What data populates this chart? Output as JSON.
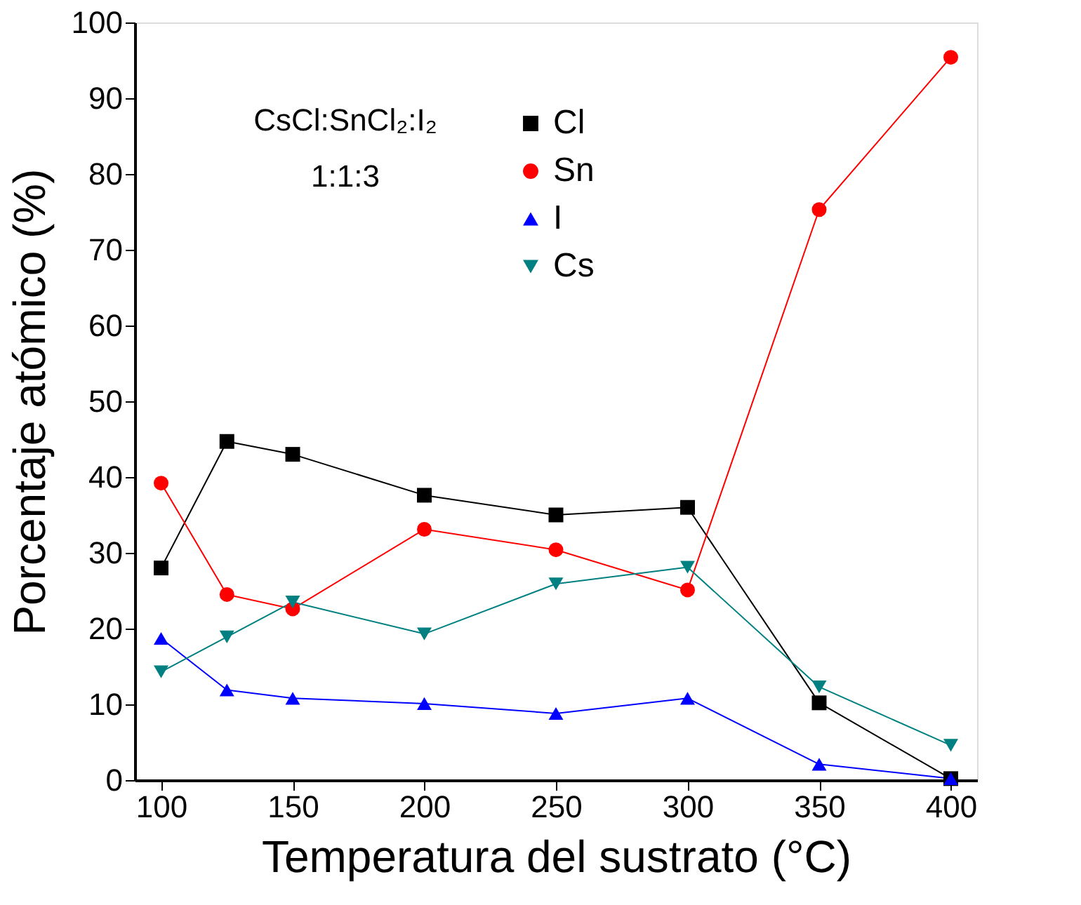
{
  "chart_data": {
    "type": "line",
    "xlabel": "Temperatura del sustrato  (°C)",
    "ylabel": "Porcentaje atómico  (%)",
    "x": [
      100,
      125,
      150,
      200,
      250,
      300,
      350,
      400
    ],
    "series": [
      {
        "name": "Cl",
        "color": "#000000",
        "marker": "square",
        "values": [
          28,
          44.7,
          43,
          37.6,
          35,
          36,
          10.2,
          0.2
        ]
      },
      {
        "name": "Sn",
        "color": "#ff0000",
        "marker": "circle",
        "values": [
          39.2,
          24.5,
          22.6,
          33.1,
          30.4,
          25.1,
          75.3,
          95.4
        ]
      },
      {
        "name": "I",
        "color": "#0000ff",
        "marker": "triangle",
        "values": [
          18.7,
          11.9,
          10.8,
          10.1,
          8.8,
          10.8,
          2.1,
          0.2
        ]
      },
      {
        "name": "Cs",
        "color": "#008080",
        "marker": "triangle-down",
        "values": [
          14.3,
          18.9,
          23.5,
          19.3,
          25.9,
          28.1,
          12.3,
          4.6
        ]
      }
    ],
    "annotations": [
      "CsCl:SnCl₂:I₂",
      "1:1:3"
    ],
    "xlim": [
      90,
      410
    ],
    "xticks": [
      100,
      150,
      200,
      250,
      300,
      350,
      400
    ],
    "ylim": [
      0,
      100
    ],
    "yticks": [
      0,
      10,
      20,
      30,
      40,
      50,
      60,
      70,
      80,
      90,
      100
    ],
    "grid": false,
    "legend": "top"
  }
}
